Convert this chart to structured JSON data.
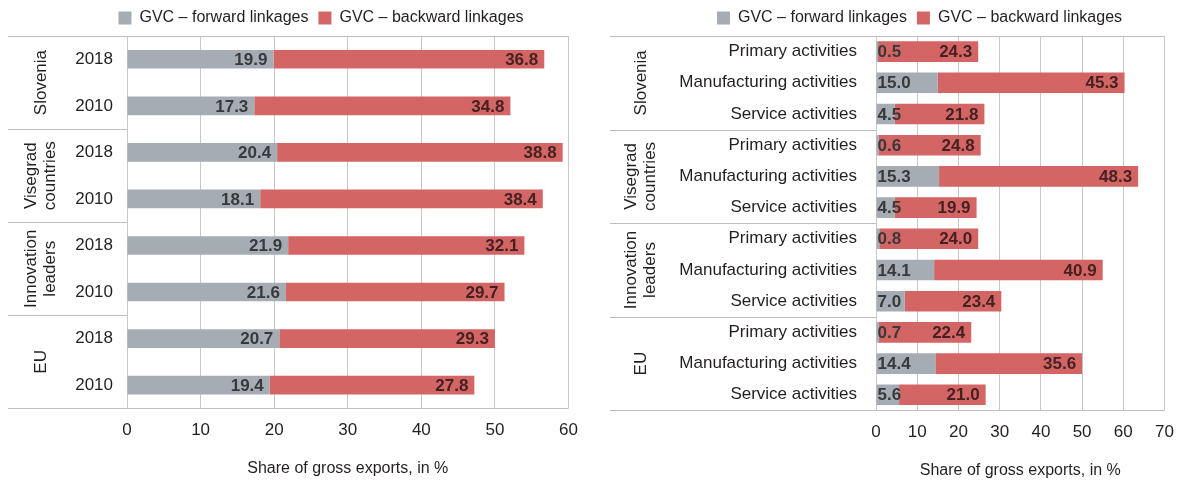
{
  "chart_data": [
    {
      "type": "bar",
      "orientation": "horizontal",
      "stacked": true,
      "categories": [
        "2018",
        "2010",
        "2018",
        "2010",
        "2018",
        "2010",
        "2018",
        "2010"
      ],
      "series": [
        {
          "name": "GVC – forward linkages",
          "color": "#a6acb3",
          "values": [
            19.9,
            17.3,
            20.4,
            18.1,
            21.9,
            21.6,
            20.7,
            19.4
          ]
        },
        {
          "name": "GVC – backward linkages",
          "color": "#d46565",
          "values": [
            36.8,
            34.8,
            38.8,
            38.4,
            32.1,
            29.7,
            29.3,
            27.8
          ]
        }
      ],
      "xlim": [
        0,
        60
      ],
      "xticks": [
        0,
        10,
        20,
        30,
        40,
        50,
        60
      ],
      "xlabel": "Share of gross exports, in %",
      "grid": "x",
      "legend": "top",
      "data_labels": true,
      "annotations": [
        "Slovenia",
        "Visegrad countries",
        "Innovation leaders",
        "EU"
      ]
    },
    {
      "type": "bar",
      "orientation": "horizontal",
      "stacked": true,
      "categories": [
        "Primary activities",
        "Manufacturing activities",
        "Service activities",
        "Primary activities",
        "Manufacturing activities",
        "Service activities",
        "Primary activities",
        "Manufacturing activities",
        "Service activities",
        "Primary activities",
        "Manufacturing activities",
        "Service activities"
      ],
      "series": [
        {
          "name": "GVC – forward linkages",
          "color": "#a6acb3",
          "values": [
            0.5,
            15.0,
            4.5,
            0.6,
            15.3,
            4.5,
            0.8,
            14.1,
            7.0,
            0.7,
            14.4,
            5.6
          ],
          "value_labels": [
            "0.5",
            "15.0",
            "4.5",
            "0.6",
            "15.3",
            "4.5",
            "0.8",
            "14.1",
            "7.0",
            "0.7",
            "14.4",
            "5.6"
          ]
        },
        {
          "name": "GVC – backward linkages",
          "color": "#d46565",
          "values": [
            24.3,
            45.3,
            21.8,
            24.8,
            48.3,
            19.9,
            24.0,
            40.9,
            23.4,
            22.4,
            35.6,
            21.0
          ],
          "value_labels": [
            "24.3",
            "45.3",
            "21.8",
            "24.8",
            "48.3",
            "19.9",
            "24.0",
            "40.9",
            "23.4",
            "22.4",
            "35.6",
            "21.0"
          ]
        }
      ],
      "xlim": [
        0,
        70
      ],
      "xticks": [
        0,
        10,
        20,
        30,
        40,
        50,
        60,
        70
      ],
      "xlabel": "Share of gross exports, in %",
      "grid": "x",
      "legend": "top",
      "annotations": [
        "Slovenia",
        "Visegrad countries",
        "Innovation leaders",
        "EU"
      ]
    }
  ]
}
